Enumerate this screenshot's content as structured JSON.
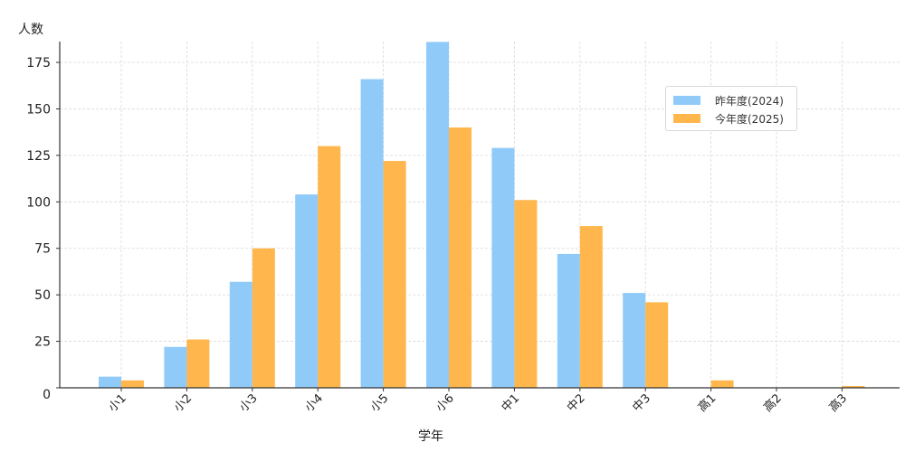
{
  "chart_data": {
    "type": "bar",
    "title": "",
    "xlabel": "学年",
    "ylabel": "人数",
    "categories": [
      "小1",
      "小2",
      "小3",
      "小4",
      "小5",
      "小6",
      "中1",
      "中2",
      "中3",
      "高1",
      "高2",
      "高3"
    ],
    "series": [
      {
        "name": "昨年度(2024)",
        "color": "#90CAF9",
        "values": [
          6,
          22,
          57,
          104,
          166,
          186,
          129,
          72,
          51,
          0,
          0,
          0
        ]
      },
      {
        "name": "今年度(2025)",
        "color": "#FFB74D",
        "values": [
          4,
          26,
          75,
          130,
          122,
          140,
          101,
          87,
          46,
          4,
          0,
          1
        ]
      }
    ],
    "ylim": [
      0,
      186
    ],
    "yticks": [
      0,
      25,
      50,
      75,
      100,
      125,
      150,
      175
    ],
    "grid": true,
    "legend_position": "upper right"
  },
  "legend": {
    "items": [
      {
        "label": "昨年度(2024)",
        "color": "#90CAF9"
      },
      {
        "label": "今年度(2025)",
        "color": "#FFB74D"
      }
    ]
  },
  "axes": {
    "xlabel": "学年",
    "ylabel": "人数"
  }
}
